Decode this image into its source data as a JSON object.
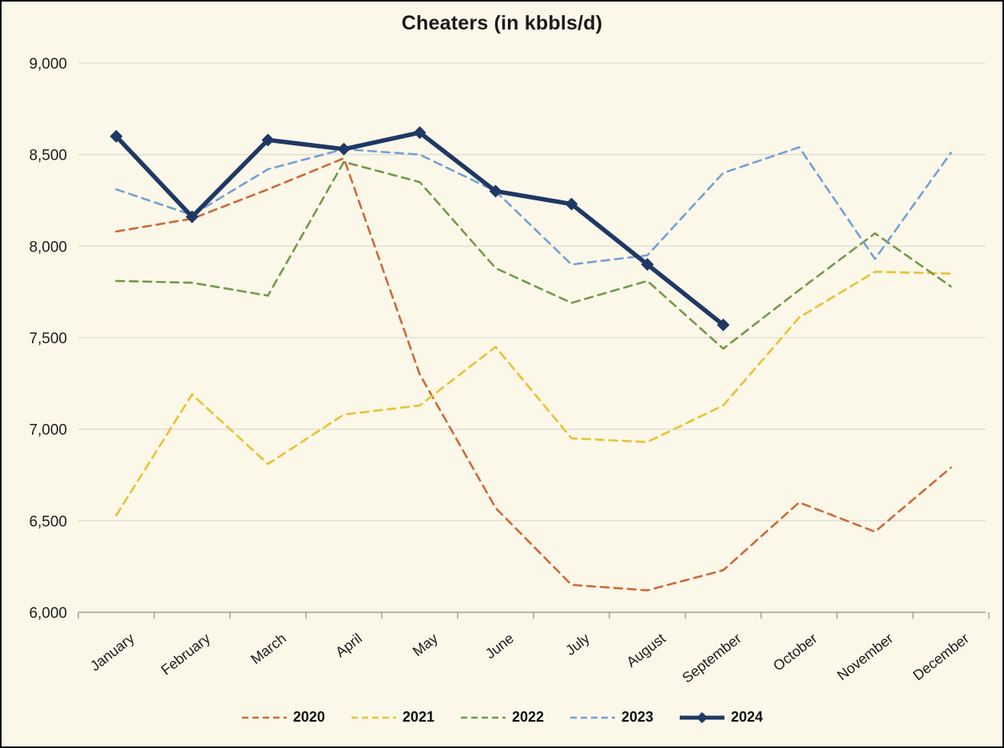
{
  "chart_data": {
    "type": "line",
    "title": "Cheaters (in kbbls/d)",
    "categories": [
      "January",
      "February",
      "March",
      "April",
      "May",
      "June",
      "July",
      "August",
      "September",
      "October",
      "November",
      "December"
    ],
    "series": [
      {
        "name": "2020",
        "color": "#CD6937",
        "style": "dashed",
        "values": [
          8080,
          8150,
          8310,
          8480,
          7300,
          6570,
          6150,
          6120,
          6230,
          6600,
          6440,
          6790
        ]
      },
      {
        "name": "2021",
        "color": "#E8C32E",
        "style": "dashed",
        "values": [
          6530,
          7190,
          6810,
          7080,
          7130,
          7450,
          6950,
          6930,
          7130,
          7610,
          7860,
          7850
        ]
      },
      {
        "name": "2022",
        "color": "#73994B",
        "style": "dashed",
        "values": [
          7810,
          7800,
          7730,
          8460,
          8350,
          7880,
          7690,
          7810,
          7440,
          7760,
          8070,
          7780
        ]
      },
      {
        "name": "2023",
        "color": "#72A1D6",
        "style": "dashed",
        "values": [
          8310,
          8170,
          8420,
          8530,
          8500,
          8300,
          7900,
          7950,
          8400,
          8540,
          7930,
          8510
        ]
      },
      {
        "name": "2024",
        "color": "#1F3864",
        "style": "solid-diamond",
        "values": [
          8600,
          8160,
          8580,
          8530,
          8620,
          8300,
          8230,
          7900,
          7570,
          null,
          null,
          null
        ]
      }
    ],
    "ylim": [
      6000,
      9000
    ],
    "ytick_step": 500,
    "ytick_labels": [
      "6,000",
      "6,500",
      "7,000",
      "7,500",
      "8,000",
      "8,500",
      "9,000"
    ],
    "grid": true,
    "legend_position": "bottom"
  },
  "colors": {
    "background": "#FBF7E9",
    "gridline": "#DAD8CE",
    "axis": "#9E9D96",
    "text": "#1C1C1C",
    "frame_border": "#0F0F0F"
  }
}
